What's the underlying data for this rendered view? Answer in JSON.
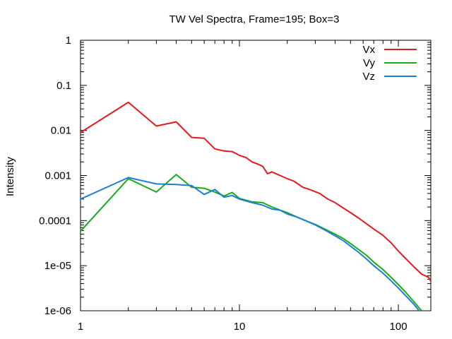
{
  "chart_data": {
    "type": "line",
    "title": "TW Vel Spectra, Frame=195; Box=3",
    "xlabel": "",
    "ylabel": "Intensity",
    "xscale": "log",
    "yscale": "log",
    "xlim": [
      1,
      160
    ],
    "ylim": [
      1e-06,
      1
    ],
    "xticks": [
      {
        "value": 1,
        "label": "1"
      },
      {
        "value": 10,
        "label": "10"
      },
      {
        "value": 100,
        "label": "100"
      }
    ],
    "yticks": [
      {
        "value": 1,
        "label": "1"
      },
      {
        "value": 0.1,
        "label": "0.1"
      },
      {
        "value": 0.01,
        "label": "0.01"
      },
      {
        "value": 0.001,
        "label": "0.001"
      },
      {
        "value": 0.0001,
        "label": "0.0001"
      },
      {
        "value": 1e-05,
        "label": "1e-05"
      },
      {
        "value": 1e-06,
        "label": "1e-06"
      }
    ],
    "grid": false,
    "legend_position": "top-right",
    "series": [
      {
        "name": "Vx",
        "color": "#e41a1c",
        "points": [
          [
            1,
            0.009
          ],
          [
            2,
            0.042
          ],
          [
            3,
            0.0125
          ],
          [
            4,
            0.0155
          ],
          [
            5,
            0.007
          ],
          [
            6,
            0.0067
          ],
          [
            7,
            0.0039
          ],
          [
            8,
            0.0035
          ],
          [
            9,
            0.0034
          ],
          [
            10,
            0.0028
          ],
          [
            11,
            0.0025
          ],
          [
            12,
            0.002
          ],
          [
            13,
            0.0018
          ],
          [
            14,
            0.0016
          ],
          [
            15,
            0.0011
          ],
          [
            16,
            0.0012
          ],
          [
            18,
            0.001
          ],
          [
            20,
            0.00085
          ],
          [
            22,
            0.00075
          ],
          [
            25,
            0.00055
          ],
          [
            28,
            0.00048
          ],
          [
            32,
            0.0004
          ],
          [
            36,
            0.0003
          ],
          [
            40,
            0.00025
          ],
          [
            45,
            0.00019
          ],
          [
            50,
            0.00015
          ],
          [
            56,
            0.000115
          ],
          [
            63,
            8.5e-05
          ],
          [
            70,
            6.5e-05
          ],
          [
            80,
            4.7e-05
          ],
          [
            90,
            3.2e-05
          ],
          [
            100,
            2.1e-05
          ],
          [
            112,
            1.4e-05
          ],
          [
            125,
            9.5e-06
          ],
          [
            140,
            6.5e-06
          ],
          [
            155,
            5.5e-06
          ],
          [
            160,
            4.5e-06
          ]
        ]
      },
      {
        "name": "Vy",
        "color": "#1aaa1a",
        "points": [
          [
            1,
            5.8e-05
          ],
          [
            2,
            0.00085
          ],
          [
            3,
            0.00043
          ],
          [
            4,
            0.00105
          ],
          [
            5,
            0.00055
          ],
          [
            6,
            0.00052
          ],
          [
            7,
            0.00043
          ],
          [
            8,
            0.00035
          ],
          [
            9,
            0.00042
          ],
          [
            10,
            0.00031
          ],
          [
            12,
            0.00026
          ],
          [
            14,
            0.00025
          ],
          [
            16,
            0.0002
          ],
          [
            18,
            0.00017
          ],
          [
            20,
            0.00015
          ],
          [
            23,
            0.00012
          ],
          [
            26,
            0.0001
          ],
          [
            30,
            8.2e-05
          ],
          [
            35,
            6.3e-05
          ],
          [
            40,
            5e-05
          ],
          [
            45,
            4e-05
          ],
          [
            50,
            3.1e-05
          ],
          [
            56,
            2.3e-05
          ],
          [
            63,
            1.7e-05
          ],
          [
            70,
            1.2e-05
          ],
          [
            80,
            8.2e-06
          ],
          [
            90,
            5.5e-06
          ],
          [
            100,
            3.8e-06
          ],
          [
            112,
            2.5e-06
          ],
          [
            125,
            1.6e-06
          ],
          [
            140,
            1e-06
          ]
        ]
      },
      {
        "name": "Vz",
        "color": "#1c7fd6",
        "points": [
          [
            1,
            0.0003
          ],
          [
            2,
            0.0009
          ],
          [
            3,
            0.00065
          ],
          [
            4,
            0.00063
          ],
          [
            5,
            0.0006
          ],
          [
            6,
            0.00038
          ],
          [
            7,
            0.00049
          ],
          [
            8,
            0.00033
          ],
          [
            9,
            0.00036
          ],
          [
            10,
            0.0003
          ],
          [
            12,
            0.00025
          ],
          [
            14,
            0.00022
          ],
          [
            16,
            0.00018
          ],
          [
            18,
            0.00017
          ],
          [
            20,
            0.00014
          ],
          [
            23,
            0.00012
          ],
          [
            26,
            0.0001
          ],
          [
            30,
            8e-05
          ],
          [
            35,
            6e-05
          ],
          [
            40,
            4.6e-05
          ],
          [
            45,
            3.6e-05
          ],
          [
            50,
            2.7e-05
          ],
          [
            56,
            2e-05
          ],
          [
            63,
            1.4e-05
          ],
          [
            70,
            1e-05
          ],
          [
            80,
            6.8e-06
          ],
          [
            90,
            4.6e-06
          ],
          [
            100,
            3.2e-06
          ],
          [
            112,
            2.1e-06
          ],
          [
            125,
            1.4e-06
          ],
          [
            135,
            1e-06
          ]
        ]
      }
    ]
  }
}
